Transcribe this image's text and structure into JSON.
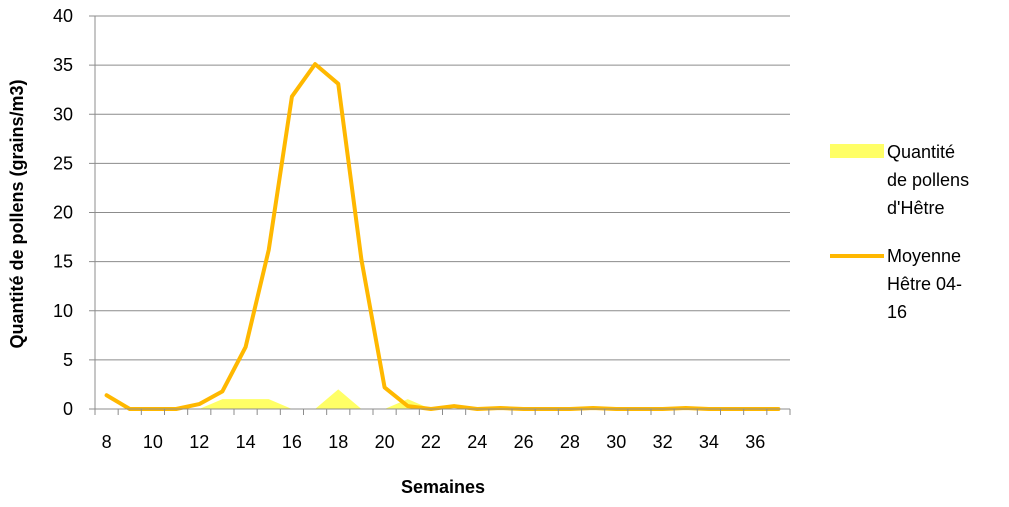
{
  "chart_data": {
    "type": "area",
    "xlabel": "Semaines",
    "ylabel": "Quantité de pollens (grains/m3)",
    "ylim": [
      0,
      40
    ],
    "yticks": [
      0,
      5,
      10,
      15,
      20,
      25,
      30,
      35,
      40
    ],
    "x": [
      8,
      9,
      10,
      11,
      12,
      13,
      14,
      15,
      16,
      17,
      18,
      19,
      20,
      21,
      22,
      23,
      24,
      25,
      26,
      27,
      28,
      29,
      30,
      31,
      32,
      33,
      34,
      35,
      36,
      37
    ],
    "xtick_labels": [
      8,
      10,
      12,
      14,
      16,
      18,
      20,
      22,
      24,
      26,
      28,
      30,
      32,
      34,
      36
    ],
    "grid": "horizontal",
    "legend_position": "right",
    "series": [
      {
        "name": "Quantité de pollens d'Hêtre",
        "kind": "area",
        "color": "#FFFF66",
        "values": [
          0,
          0,
          0,
          0,
          0,
          1,
          1,
          1,
          0,
          0,
          2,
          0,
          0,
          1,
          0,
          0,
          0,
          0,
          0,
          0,
          0,
          0,
          0,
          0,
          0,
          0,
          0,
          0,
          0,
          0
        ]
      },
      {
        "name": "Moyenne Hêtre 04-16",
        "kind": "line",
        "color": "#FFB800",
        "values": [
          1.4,
          0,
          0,
          0,
          0.5,
          1.8,
          6.3,
          16.2,
          31.8,
          35.1,
          33.1,
          15.2,
          2.2,
          0.3,
          0,
          0.3,
          0,
          0.1,
          0,
          0,
          0,
          0.1,
          0,
          0,
          0,
          0.1,
          0,
          0,
          0,
          0
        ]
      }
    ],
    "legend": [
      {
        "lines": [
          "Quantité",
          "de pollens",
          "d'Hêtre"
        ]
      },
      {
        "lines": [
          "Moyenne",
          "Hêtre 04-",
          "16"
        ]
      }
    ]
  }
}
